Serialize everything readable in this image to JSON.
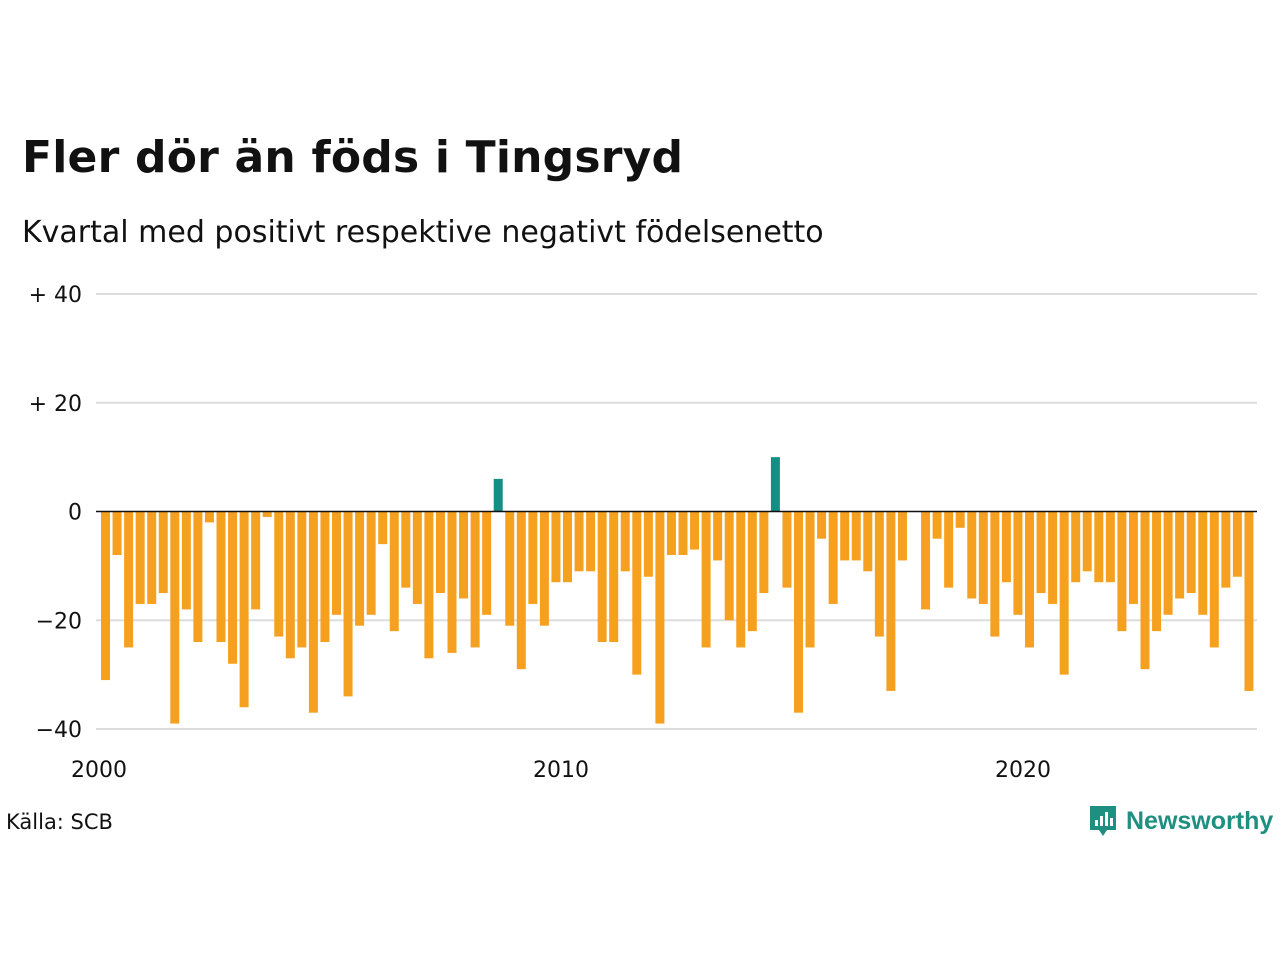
{
  "title": "Fler dör än föds i Tingsryd",
  "subtitle": "Kvartal med positivt respektive negativt födelsenetto",
  "source": "Källa: SCB",
  "brand": {
    "name": "Newsworthy",
    "color": "#1e8f80",
    "icon": "newsworthy-logo-icon"
  },
  "colors": {
    "negative": "#f5a11f",
    "positive": "#138f83",
    "grid": "#dddddd",
    "zero_line": "#111111"
  },
  "chart_data": {
    "type": "bar",
    "title": "Fler dör än föds i Tingsryd",
    "subtitle": "Kvartal med positivt respektive negativt födelsenetto",
    "xlabel": "",
    "ylabel": "",
    "x_start": "2000",
    "x_ticks": [
      "2000",
      "2010",
      "2020"
    ],
    "y_ticks": [
      {
        "value": 40,
        "label": "+ 40"
      },
      {
        "value": 20,
        "label": "+ 20"
      },
      {
        "value": 0,
        "label": "0"
      },
      {
        "value": -20,
        "label": "−20"
      },
      {
        "value": -40,
        "label": "−40"
      }
    ],
    "ylim": [
      -40,
      40
    ],
    "grid": true,
    "values": [
      -31,
      -8,
      -25,
      -17,
      -17,
      -15,
      -39,
      -18,
      -24,
      -2,
      -24,
      -28,
      -36,
      -18,
      -1,
      -23,
      -27,
      -25,
      -37,
      -24,
      -19,
      -34,
      -21,
      -19,
      -6,
      -22,
      -14,
      -17,
      -27,
      -15,
      -26,
      -16,
      -25,
      -19,
      6,
      -21,
      -29,
      -17,
      -21,
      -13,
      -13,
      -11,
      -11,
      -24,
      -24,
      -11,
      -30,
      -12,
      -39,
      -8,
      -8,
      -7,
      -25,
      -9,
      -20,
      -25,
      -22,
      -15,
      10,
      -14,
      -37,
      -25,
      -5,
      -17,
      -9,
      -9,
      -11,
      -23,
      -33,
      -9,
      0,
      -18,
      -5,
      -14,
      -3,
      -16,
      -17,
      -23,
      -13,
      -19,
      -25,
      -15,
      -17,
      -30,
      -13,
      -11,
      -13,
      -13,
      -22,
      -17,
      -29,
      -22,
      -19,
      -16,
      -15,
      -19,
      -25,
      -14,
      -12,
      -33
    ]
  }
}
